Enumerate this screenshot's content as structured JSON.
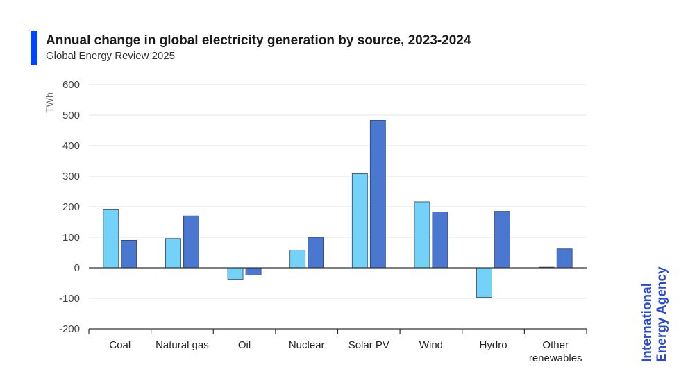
{
  "header": {
    "title": "Annual change in global electricity generation by source, 2023-2024",
    "subtitle": "Global Energy Review 2025"
  },
  "brand": {
    "line1": "International",
    "line2": "Energy Agency"
  },
  "colors": {
    "accent": "#0044ff",
    "series_2023": "#74d2f8",
    "series_2024": "#4a78d0",
    "grid": "#e6e6e6",
    "zero_line": "#333333",
    "brand": "#2a4bd8"
  },
  "chart_data": {
    "type": "bar",
    "title": "Annual change in global electricity generation by source, 2023-2024",
    "ylabel": "TWh",
    "ylim": [
      -200,
      600
    ],
    "yticks": [
      -200,
      -100,
      0,
      100,
      200,
      300,
      400,
      500,
      600
    ],
    "grid": true,
    "categories": [
      "Coal",
      "Natural gas",
      "Oil",
      "Nuclear",
      "Solar PV",
      "Wind",
      "Hydro",
      "Other renewables"
    ],
    "series": [
      {
        "values": [
          192,
          96,
          -38,
          58,
          308,
          216,
          -97,
          2
        ]
      },
      {
        "values": [
          90,
          170,
          -24,
          100,
          483,
          183,
          185,
          62
        ]
      }
    ]
  }
}
